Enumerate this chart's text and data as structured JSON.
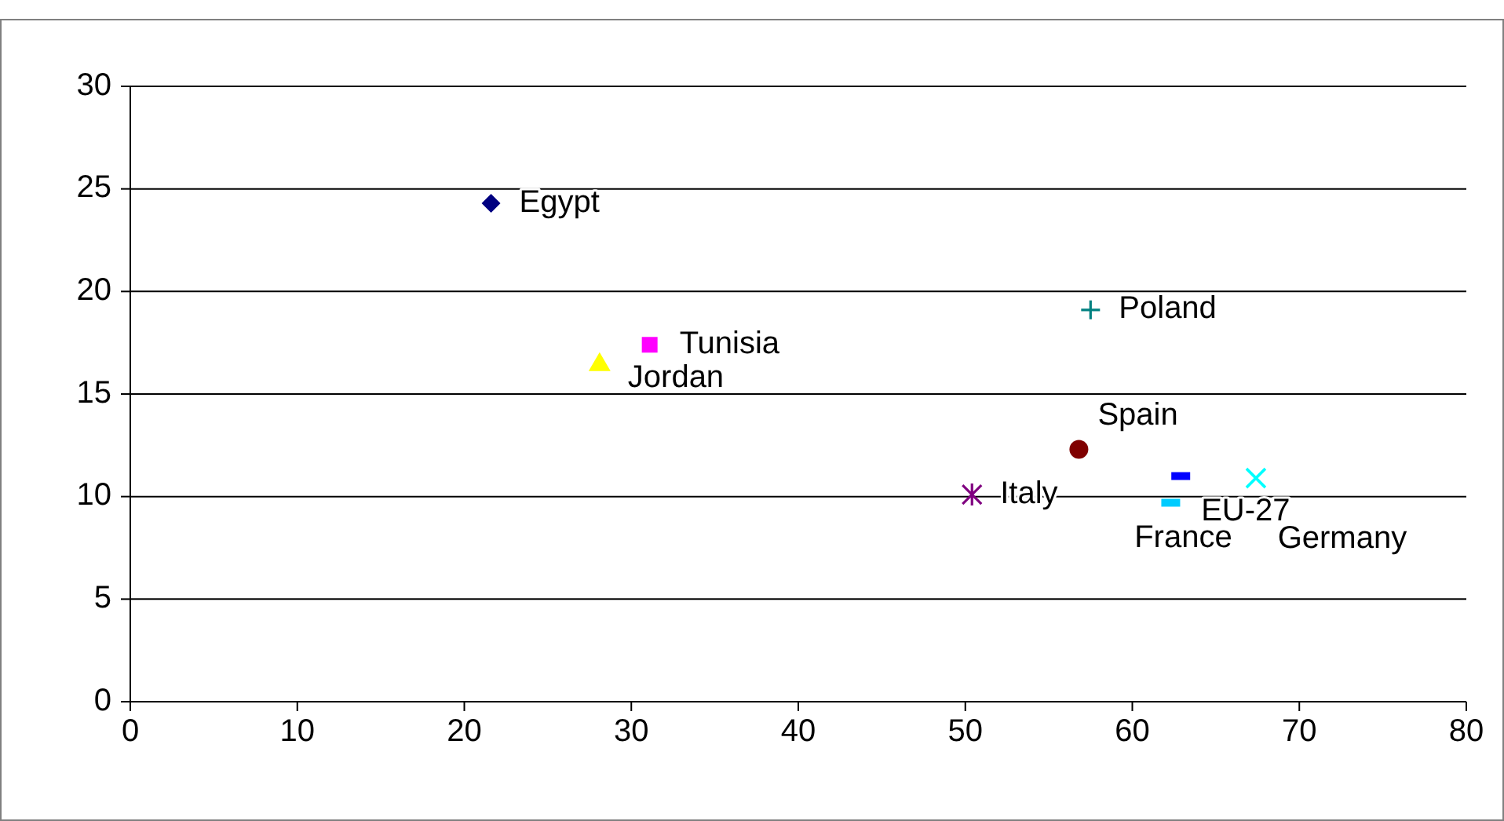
{
  "chart_data": {
    "type": "scatter",
    "series": [
      {
        "name": "Egypt",
        "color": "#000080",
        "marker": "diamond",
        "x": [
          21.6
        ],
        "values": [
          24.3
        ]
      },
      {
        "name": "Tunisia",
        "color": "#ff00ff",
        "marker": "square",
        "x": [
          31.1
        ],
        "values": [
          17.4
        ]
      },
      {
        "name": "Jordan",
        "color": "#ffff00",
        "marker": "triangle",
        "x": [
          28.1
        ],
        "values": [
          16.5
        ]
      },
      {
        "name": "Poland",
        "color": "#008080",
        "marker": "cross",
        "x": [
          57.5
        ],
        "values": [
          19.1
        ]
      },
      {
        "name": "Spain",
        "color": "#800000",
        "marker": "circle",
        "x": [
          56.8
        ],
        "values": [
          12.3
        ]
      },
      {
        "name": "Italy",
        "color": "#800080",
        "marker": "cross",
        "x": [
          50.4
        ],
        "values": [
          10.1
        ]
      },
      {
        "name": "EU-27",
        "color": "#0000ff",
        "marker": "square",
        "x": [
          62.9
        ],
        "values": [
          11.0
        ]
      },
      {
        "name": "France",
        "color": "#00ccff",
        "marker": "square",
        "x": [
          62.3
        ],
        "values": [
          9.7
        ]
      },
      {
        "name": "Germany",
        "color": "#00ffff",
        "marker": "cross",
        "x": [
          67.4
        ],
        "values": [
          10.9
        ]
      }
    ],
    "xlim": [
      0,
      80
    ],
    "xticks": [
      0,
      10,
      20,
      30,
      40,
      50,
      60,
      70,
      80
    ],
    "ylim": [
      0,
      30
    ],
    "yticks": [
      0,
      5,
      10,
      15,
      20,
      25,
      30
    ],
    "grid": "y"
  }
}
